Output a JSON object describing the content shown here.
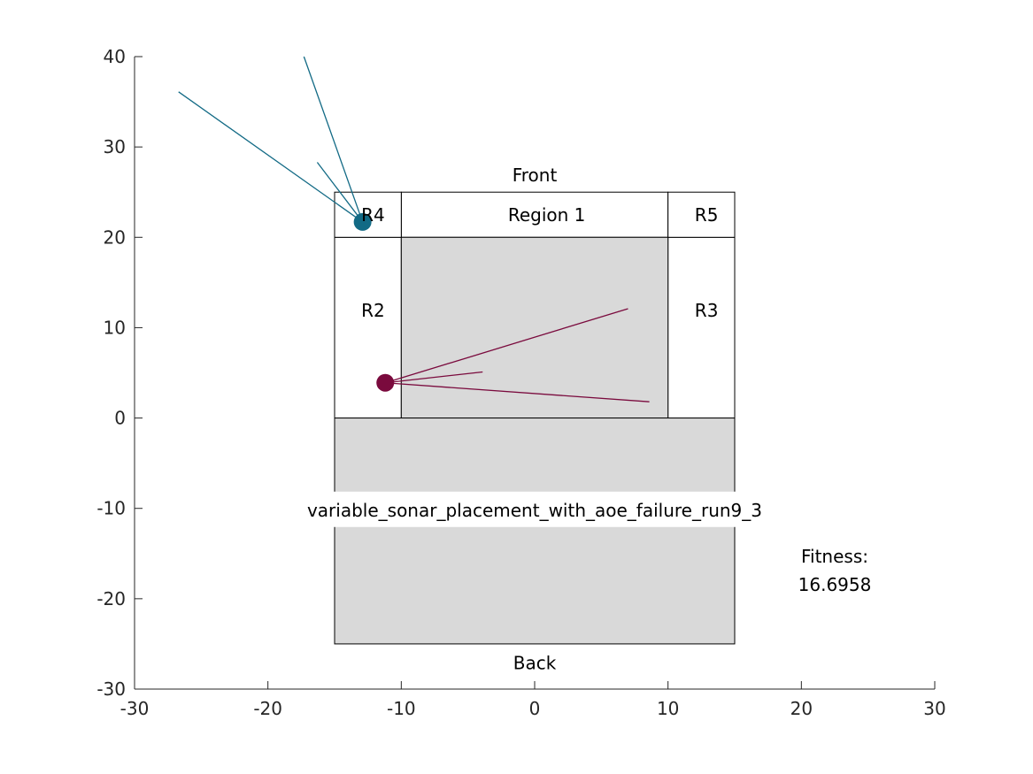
{
  "chart_data": {
    "type": "scatter",
    "xlim": [
      -30,
      30
    ],
    "ylim": [
      -30,
      40
    ],
    "x_ticks": [
      -30,
      -20,
      -10,
      0,
      10,
      20,
      30
    ],
    "y_ticks": [
      40,
      30,
      20,
      10,
      0,
      -10,
      -20,
      -30
    ],
    "grid": false,
    "regions": [
      {
        "id": "region1",
        "label": "Region 1",
        "x0": -10,
        "x1": 10,
        "y0": 20,
        "y1": 25,
        "fill": "#ffffff"
      },
      {
        "id": "r2",
        "label": "R2",
        "x0": -15,
        "x1": -10,
        "y0": 0,
        "y1": 20,
        "fill": "#ffffff"
      },
      {
        "id": "r3",
        "label": "R3",
        "x0": 10,
        "x1": 15,
        "y0": 0,
        "y1": 20,
        "fill": "#ffffff"
      },
      {
        "id": "r4",
        "label": "R4",
        "x0": -15,
        "x1": -10,
        "y0": 20,
        "y1": 25,
        "fill": "#ffffff"
      },
      {
        "id": "r5",
        "label": "R5",
        "x0": 10,
        "x1": 15,
        "y0": 20,
        "y1": 25,
        "fill": "#ffffff"
      },
      {
        "id": "inner-area",
        "label": "",
        "x0": -10,
        "x1": 10,
        "y0": 0,
        "y1": 20,
        "fill": "#d9d9d9"
      },
      {
        "id": "back-area",
        "label": "",
        "x0": -15,
        "x1": 15,
        "y0": -25,
        "y1": 0,
        "fill": "#d9d9d9"
      }
    ],
    "region_label_positions": {
      "region1": [
        -2,
        22.5
      ],
      "r2": [
        -13,
        11.9
      ],
      "r3": [
        12,
        11.9
      ],
      "r4": [
        -13,
        22.5
      ],
      "r5": [
        12,
        22.5
      ]
    },
    "sonars": [
      {
        "id": "sonar-blue",
        "color": "#126a85",
        "position": [
          -12.9,
          21.7
        ],
        "beams": [
          [
            -26.7,
            36.1
          ],
          [
            -17.3,
            40.0
          ],
          [
            -16.3,
            28.3
          ]
        ]
      },
      {
        "id": "sonar-red",
        "color": "#7a0a3d",
        "position": [
          -11.2,
          3.9
        ],
        "beams": [
          [
            7.0,
            12.1
          ],
          [
            -3.9,
            5.1
          ],
          [
            8.6,
            1.8
          ]
        ]
      }
    ],
    "front_label": "Front",
    "front_pos": [
      0,
      26.9
    ],
    "back_label": "Back",
    "back_pos": [
      0,
      -27.1
    ],
    "run_title": "variable_sonar_placement_with_aoe_failure_run9_3",
    "run_title_pos": [
      0,
      -10.2
    ],
    "fitness_label": "Fitness:",
    "fitness_value": "16.6958",
    "fitness_pos": [
      22.5,
      -15.3
    ]
  }
}
